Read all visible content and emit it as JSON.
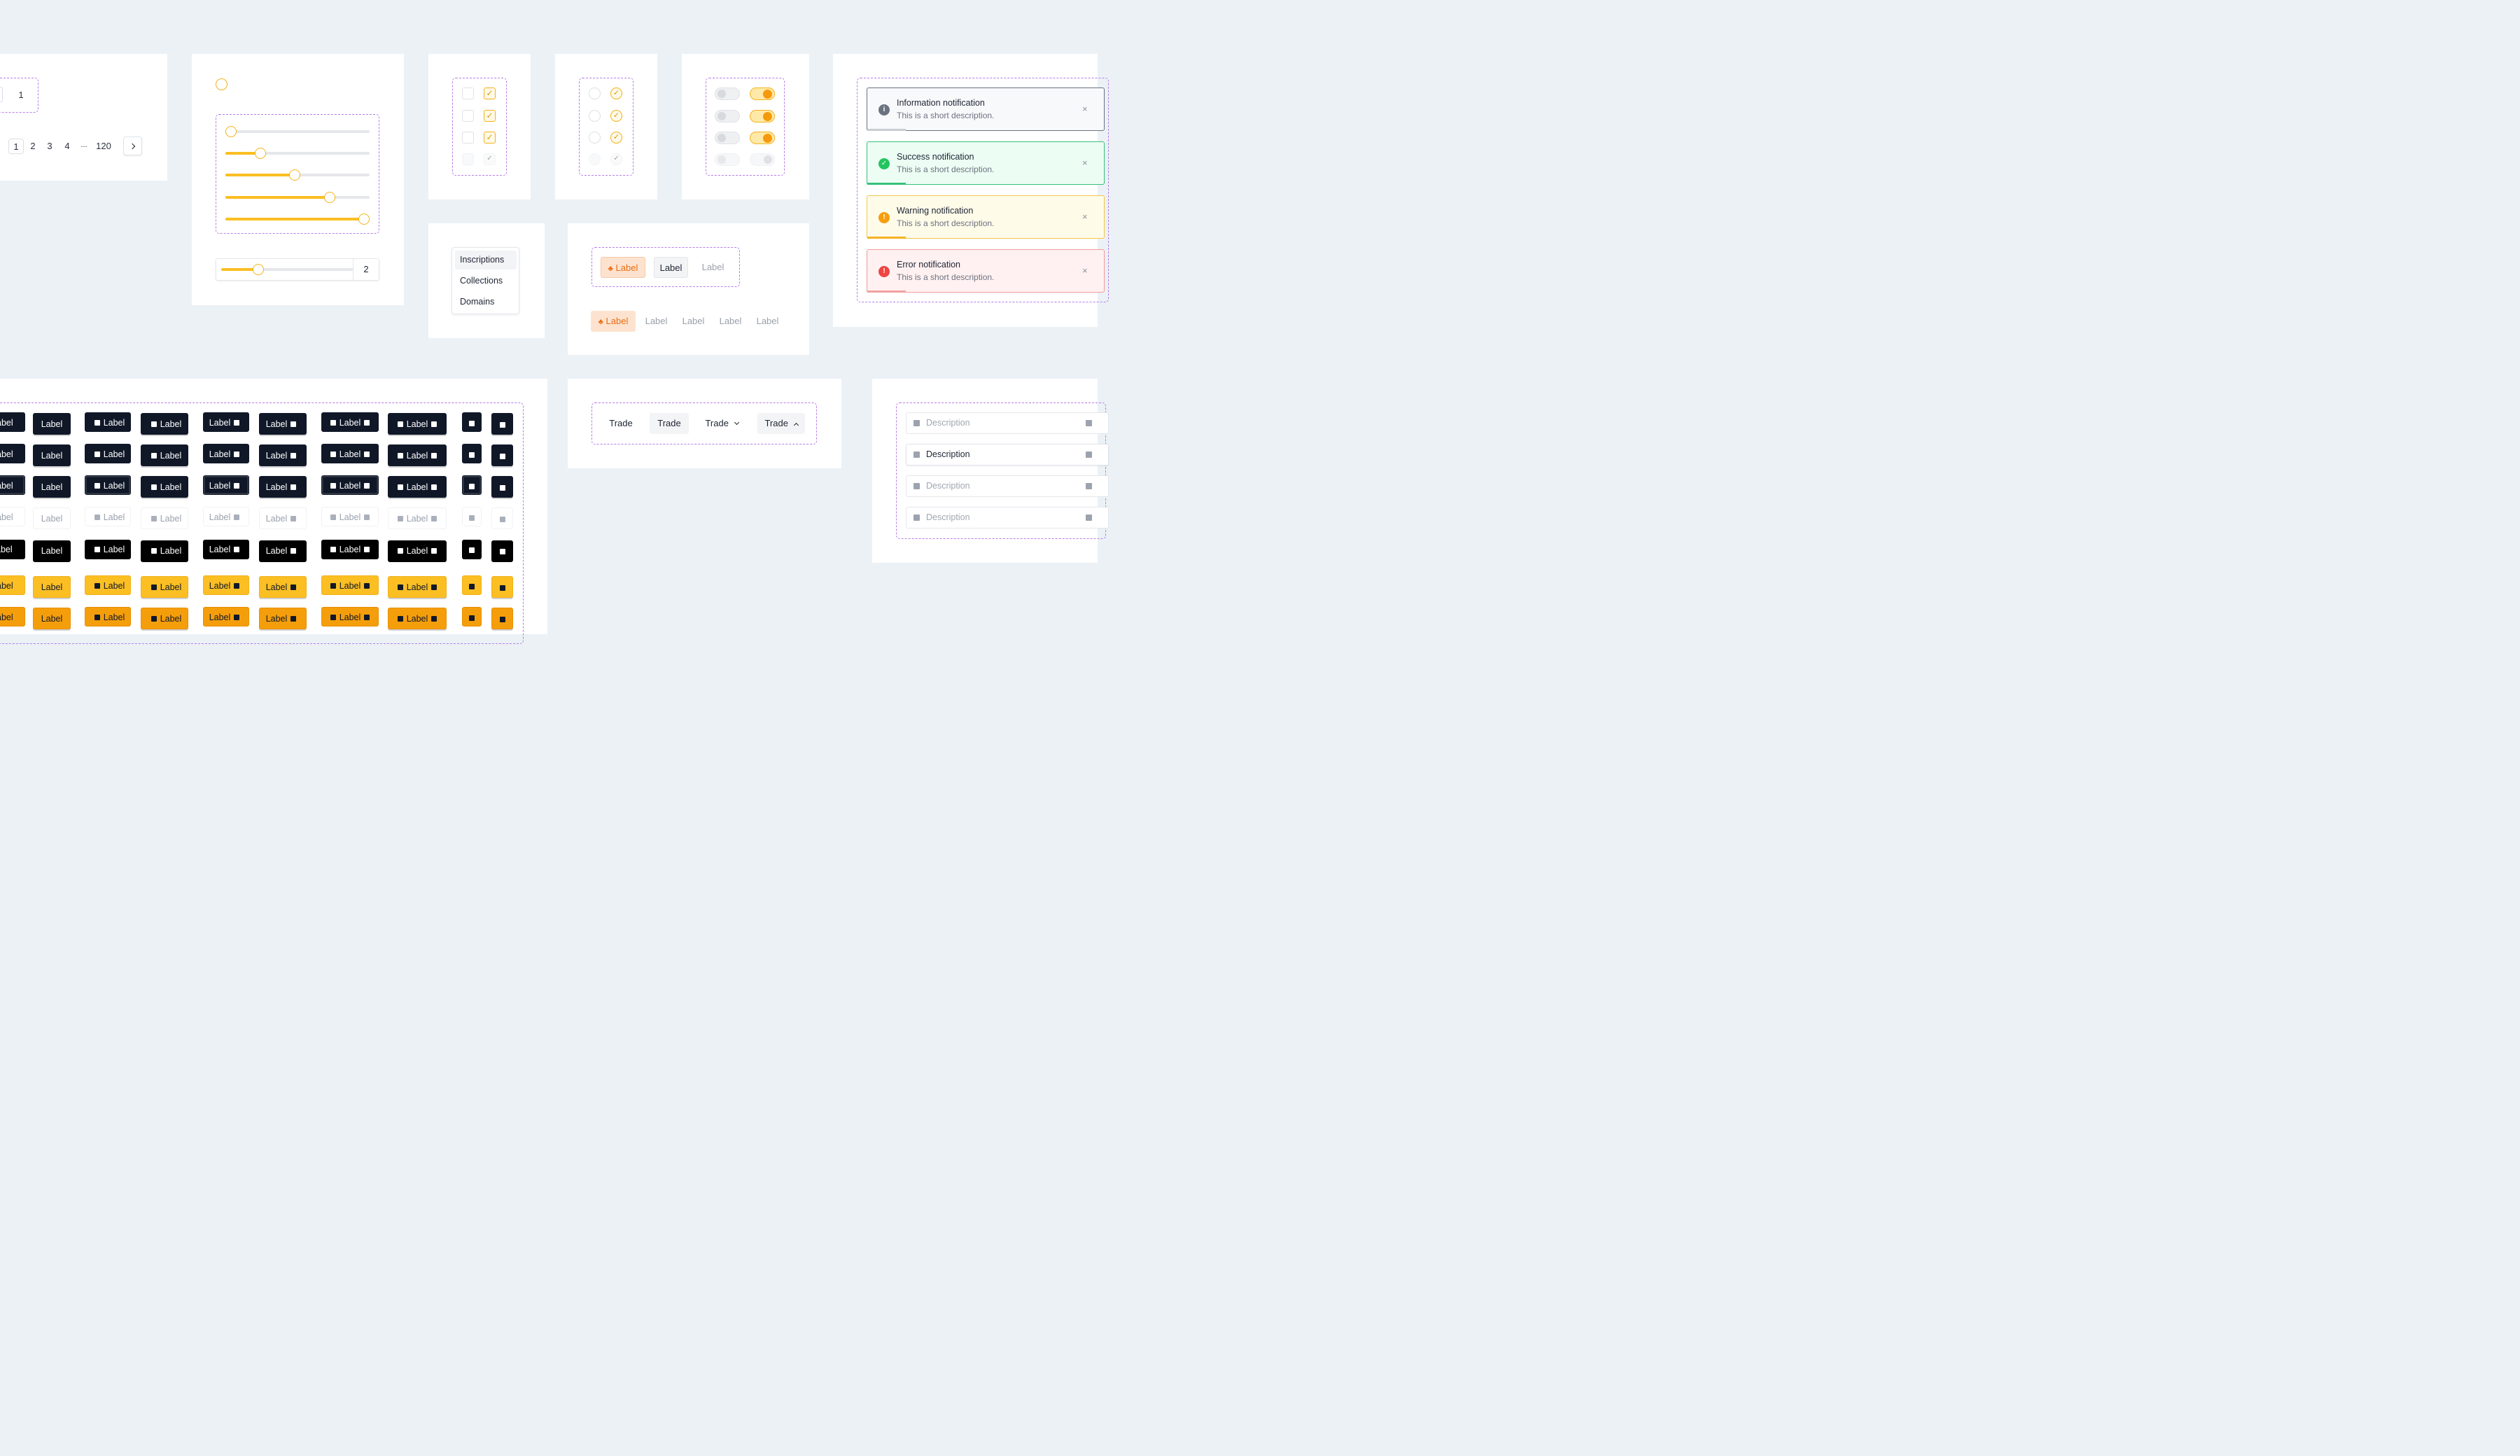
{
  "pagination": {
    "single_page": "1",
    "pages": [
      "1",
      "2",
      "3",
      "4",
      "...",
      "120"
    ],
    "next_icon": "chevron-right-icon"
  },
  "slider": {
    "levels": [
      0,
      0.25,
      0.5,
      0.75,
      1.0
    ],
    "input_level": 0.25,
    "input_value": "2",
    "accent": "#fbbe23"
  },
  "checkboxes": {
    "check_glyph": "✓"
  },
  "menu": {
    "items": [
      "Inscriptions",
      "Collections",
      "Domains"
    ]
  },
  "label_tabs": {
    "top": [
      "Label",
      "Label",
      "Label"
    ],
    "bottom": [
      "Label",
      "Label",
      "Label",
      "Label",
      "Label"
    ],
    "fire_icon": "fire-icon"
  },
  "notifications": [
    {
      "title": "Information notification",
      "description": "This is a short description.",
      "icon": "info-icon",
      "glyph": "i",
      "color": "#6b7280"
    },
    {
      "title": "Success notification",
      "description": "This is a short description.",
      "icon": "check-circle-icon",
      "glyph": "✓",
      "color": "#22c55e"
    },
    {
      "title": "Warning notification",
      "description": "This is a short description.",
      "icon": "warning-icon",
      "glyph": "!",
      "color": "#f59e0b"
    },
    {
      "title": "Error notification",
      "description": "This is a short description.",
      "icon": "error-icon",
      "glyph": "!",
      "color": "#ef4444"
    }
  ],
  "close_glyph": "×",
  "trade_tabs": [
    "Trade",
    "Trade",
    "Trade",
    "Trade"
  ],
  "select_rows": [
    "Description",
    "Description",
    "Description",
    "Description"
  ],
  "chip_label": "Label",
  "chip_cut_label": "abel"
}
